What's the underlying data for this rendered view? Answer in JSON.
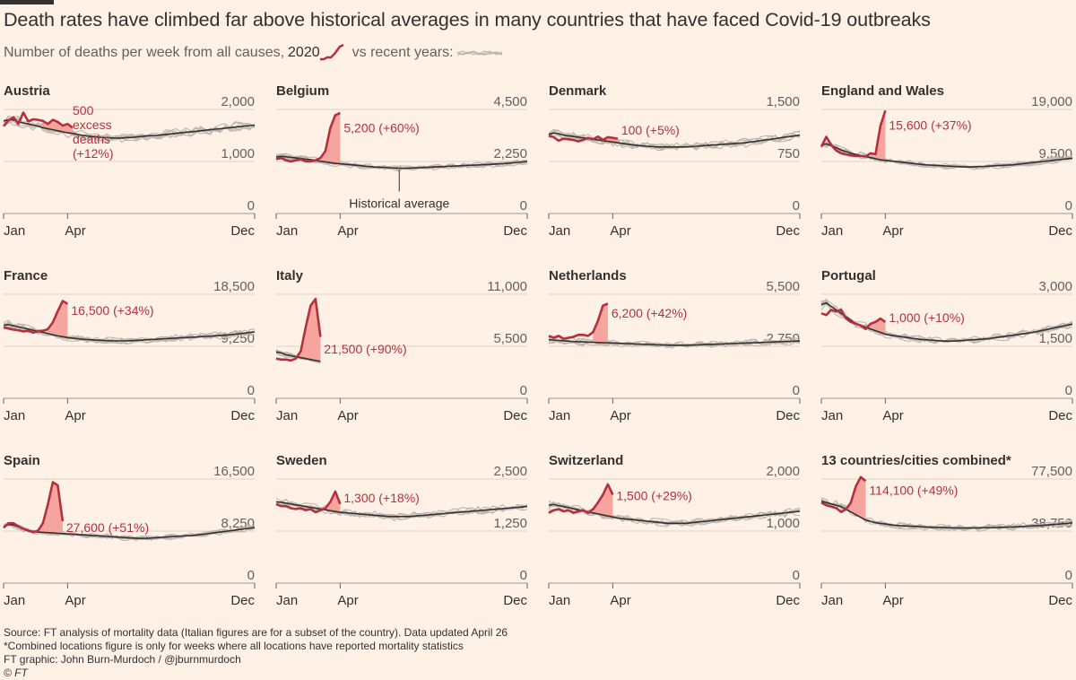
{
  "header": {
    "title": "Death rates have climbed far above historical averages in many countries that have faced Covid-19 outbreaks",
    "subtitle_prefix": "Number of deaths per week from all causes,",
    "subtitle_year": "2020",
    "subtitle_suffix": "vs recent years:"
  },
  "footer": {
    "source": "Source: FT analysis of mortality data (Italian figures are for a subset of the country). Data updated April 26",
    "note": "*Combined locations figure is only for weeks where all locations have reported mortality statistics",
    "credit": "FT graphic: John Burn-Murdoch / @jburnmurdoch",
    "copyright": "© FT"
  },
  "colors": {
    "background": "#fff1e5",
    "line_2020": "#b5303e",
    "excess_fill": "#f6a09a",
    "historical_lines": "#bdb6ae",
    "historical_average": "#33302e",
    "gridline": "#dcd2c8"
  },
  "chart_data": [
    {
      "type": "line",
      "title": "Austria",
      "x_ticks": [
        "Jan",
        "Apr",
        "Dec"
      ],
      "y_ticks": [
        "2,000",
        "1,000",
        "0"
      ],
      "ylim": [
        0,
        2000
      ],
      "series_2020": [
        1680,
        1790,
        1850,
        1720,
        1940,
        1770,
        1810,
        1800,
        1780,
        1720,
        1800,
        1760,
        1690,
        1720,
        1650
      ],
      "historical_average": [
        1780,
        1800,
        1800,
        1760,
        1740,
        1720,
        1700,
        1680,
        1650,
        1630,
        1610,
        1590,
        1570,
        1550,
        1540,
        1520,
        1500,
        1490,
        1480,
        1470,
        1460,
        1460,
        1450,
        1450,
        1450,
        1460,
        1460,
        1470,
        1480,
        1490,
        1500,
        1500,
        1510,
        1520,
        1530,
        1540,
        1550,
        1560,
        1570,
        1580,
        1590,
        1600,
        1610,
        1620,
        1630,
        1640,
        1650,
        1660,
        1670,
        1680,
        1690,
        1700
      ],
      "excess_start_week": 8,
      "annotation": "500 excess deaths (+12%)"
    },
    {
      "type": "line",
      "title": "Belgium",
      "x_ticks": [
        "Jan",
        "Apr",
        "Dec"
      ],
      "y_ticks": [
        "4,500",
        "2,250",
        "0"
      ],
      "ylim": [
        0,
        4500
      ],
      "series_2020": [
        2350,
        2400,
        2300,
        2250,
        2300,
        2350,
        2250,
        2250,
        2300,
        2400,
        2700,
        3700,
        4250,
        4350
      ],
      "historical_average": [
        2450,
        2470,
        2450,
        2430,
        2400,
        2380,
        2350,
        2330,
        2300,
        2260,
        2230,
        2200,
        2170,
        2150,
        2130,
        2110,
        2090,
        2070,
        2050,
        2030,
        2010,
        2000,
        1990,
        1980,
        1970,
        1960,
        1960,
        1960,
        1970,
        1980,
        1990,
        2000,
        2010,
        2020,
        2030,
        2040,
        2050,
        2060,
        2070,
        2080,
        2090,
        2100,
        2110,
        2120,
        2130,
        2140,
        2150,
        2170,
        2190,
        2210,
        2230,
        2250
      ],
      "excess_start_week": 9,
      "annotation": "5,200 (+60%)",
      "historical_label": "Historical average"
    },
    {
      "type": "line",
      "title": "Denmark",
      "x_ticks": [
        "Jan",
        "Apr",
        "Dec"
      ],
      "y_ticks": [
        "1,500",
        "750",
        "0"
      ],
      "ylim": [
        0,
        1500
      ],
      "series_2020": [
        1120,
        1100,
        1050,
        1080,
        1070,
        1060,
        1040,
        1060,
        1090,
        1070,
        1110,
        1060,
        1100,
        1090,
        1080
      ],
      "historical_average": [
        1140,
        1160,
        1150,
        1130,
        1120,
        1110,
        1100,
        1090,
        1080,
        1070,
        1060,
        1050,
        1040,
        1030,
        1020,
        1010,
        1000,
        990,
        980,
        975,
        970,
        965,
        960,
        960,
        960,
        960,
        960,
        960,
        960,
        965,
        970,
        975,
        980,
        985,
        990,
        995,
        1000,
        1005,
        1010,
        1015,
        1020,
        1030,
        1040,
        1050,
        1060,
        1070,
        1080,
        1090,
        1100,
        1110,
        1120,
        1130
      ],
      "excess_start_week": 11,
      "annotation": "100 (+5%)"
    },
    {
      "type": "line",
      "title": "England and Wales",
      "x_ticks": [
        "Jan",
        "Apr",
        "Dec"
      ],
      "y_ticks": [
        "19,000",
        "9,500",
        "0"
      ],
      "ylim": [
        0,
        19000
      ],
      "series_2020": [
        12200,
        14000,
        12500,
        11500,
        11000,
        10800,
        10600,
        10500,
        10500,
        10400,
        11000,
        10800,
        16000,
        18800
      ],
      "historical_average": [
        12500,
        12700,
        12400,
        12000,
        11600,
        11300,
        11000,
        10800,
        10600,
        10400,
        10200,
        10000,
        9800,
        9700,
        9600,
        9500,
        9400,
        9300,
        9200,
        9100,
        9000,
        8900,
        8850,
        8800,
        8750,
        8700,
        8650,
        8600,
        8550,
        8500,
        8500,
        8500,
        8550,
        8600,
        8650,
        8700,
        8750,
        8800,
        8850,
        8900,
        9000,
        9100,
        9200,
        9300,
        9400,
        9500,
        9600,
        9700,
        9800,
        9900,
        10000,
        10100
      ],
      "excess_start_week": 11,
      "annotation": "15,600 (+37%)"
    },
    {
      "type": "line",
      "title": "France",
      "x_ticks": [
        "Jan",
        "Apr",
        "Dec"
      ],
      "y_ticks": [
        "18,500",
        "9,250",
        "0"
      ],
      "ylim": [
        0,
        18500
      ],
      "series_2020": [
        12600,
        12400,
        12200,
        12100,
        11900,
        12000,
        11700,
        11900,
        12000,
        12300,
        13500,
        15500,
        17300,
        16800
      ],
      "historical_average": [
        13000,
        13100,
        12900,
        12700,
        12500,
        12300,
        12100,
        11900,
        11700,
        11500,
        11300,
        11100,
        10950,
        10800,
        10700,
        10600,
        10500,
        10450,
        10400,
        10350,
        10300,
        10250,
        10200,
        10200,
        10200,
        10200,
        10250,
        10300,
        10350,
        10400,
        10450,
        10500,
        10550,
        10600,
        10650,
        10700,
        10750,
        10800,
        10850,
        10900,
        10950,
        11000,
        11050,
        11100,
        11150,
        11200,
        11300,
        11400,
        11500,
        11600,
        11700,
        11800
      ],
      "excess_start_week": 9,
      "annotation": "16,500 (+34%)"
    },
    {
      "type": "line",
      "title": "Italy",
      "x_ticks": [
        "Jan",
        "Apr",
        "Dec"
      ],
      "y_ticks": [
        "11,000",
        "5,500",
        "0"
      ],
      "ylim": [
        0,
        11000
      ],
      "series_2020": [
        4200,
        4100,
        4100,
        4000,
        4200,
        5000,
        7500,
        9800,
        10500,
        6500
      ],
      "historical_average": [
        4900,
        4800,
        4600,
        4500,
        4400,
        4300,
        4200,
        4100,
        4000,
        3900
      ],
      "excess_start_week": 4,
      "annotation": "21,500 (+90%)"
    },
    {
      "type": "line",
      "title": "Netherlands",
      "x_ticks": [
        "Jan",
        "Apr",
        "Dec"
      ],
      "y_ticks": [
        "5,500",
        "2,750",
        "0"
      ],
      "ylim": [
        0,
        5500
      ],
      "series_2020": [
        3300,
        3200,
        3300,
        3150,
        3200,
        3250,
        3350,
        3350,
        3300,
        3500,
        4100,
        4900,
        5000
      ],
      "historical_average": [
        3100,
        3080,
        3060,
        3040,
        3020,
        3000,
        2990,
        2980,
        2970,
        2960,
        2950,
        2940,
        2930,
        2920,
        2910,
        2900,
        2890,
        2880,
        2870,
        2860,
        2850,
        2840,
        2830,
        2820,
        2810,
        2800,
        2800,
        2800,
        2800,
        2810,
        2820,
        2830,
        2840,
        2850,
        2860,
        2870,
        2880,
        2890,
        2900,
        2910,
        2920,
        2930,
        2940,
        2950,
        2960,
        2970,
        2980,
        2990,
        3000,
        3010,
        3020,
        3030
      ],
      "excess_start_week": 9,
      "annotation": "6,200 (+42%)"
    },
    {
      "type": "line",
      "title": "Portugal",
      "x_ticks": [
        "Jan",
        "Apr",
        "Dec"
      ],
      "y_ticks": [
        "3,000",
        "1,500",
        "0"
      ],
      "ylim": [
        0,
        3000
      ],
      "series_2020": [
        2450,
        2400,
        2550,
        2500,
        2550,
        2300,
        2200,
        2150,
        2100,
        2000,
        2150,
        2200,
        2300,
        2200
      ],
      "historical_average": [
        2700,
        2750,
        2650,
        2550,
        2450,
        2350,
        2250,
        2150,
        2100,
        2050,
        2000,
        1950,
        1900,
        1850,
        1820,
        1800,
        1780,
        1760,
        1740,
        1720,
        1700,
        1690,
        1680,
        1670,
        1660,
        1650,
        1650,
        1650,
        1660,
        1670,
        1680,
        1690,
        1700,
        1710,
        1720,
        1740,
        1760,
        1780,
        1800,
        1820,
        1840,
        1860,
        1880,
        1900,
        1930,
        1960,
        1990,
        2020,
        2050,
        2080,
        2110,
        2140
      ],
      "excess_start_week": 10,
      "annotation": "1,000 (+10%)"
    },
    {
      "type": "line",
      "title": "Spain",
      "x_ticks": [
        "Jan",
        "Apr",
        "Dec"
      ],
      "y_ticks": [
        "16,500",
        "8,250",
        "0"
      ],
      "ylim": [
        0,
        16500
      ],
      "series_2020": [
        8800,
        9500,
        9500,
        9000,
        8600,
        8300,
        8100,
        8300,
        9500,
        12500,
        16000,
        15500,
        9800
      ],
      "historical_average": [
        8900,
        9300,
        9200,
        8900,
        8600,
        8400,
        8200,
        8100,
        8050,
        8000,
        7950,
        7900,
        7850,
        7800,
        7750,
        7700,
        7650,
        7600,
        7550,
        7500,
        7450,
        7400,
        7350,
        7300,
        7250,
        7200,
        7150,
        7100,
        7100,
        7100,
        7150,
        7200,
        7250,
        7300,
        7350,
        7400,
        7450,
        7500,
        7550,
        7600,
        7700,
        7800,
        7900,
        8000,
        8100,
        8200,
        8300,
        8400,
        8500,
        8600,
        8700,
        8800
      ],
      "excess_start_week": 7,
      "annotation": "27,600 (+51%)"
    },
    {
      "type": "line",
      "title": "Sweden",
      "x_ticks": [
        "Jan",
        "Apr",
        "Dec"
      ],
      "y_ticks": [
        "2,500",
        "1,250",
        "0"
      ],
      "ylim": [
        0,
        2500
      ],
      "series_2020": [
        1900,
        1850,
        1850,
        1800,
        1780,
        1800,
        1750,
        1780,
        1700,
        1750,
        1800,
        1950,
        2200,
        1900
      ],
      "historical_average": [
        1950,
        1940,
        1920,
        1900,
        1880,
        1860,
        1840,
        1820,
        1800,
        1780,
        1760,
        1740,
        1720,
        1700,
        1690,
        1680,
        1670,
        1660,
        1650,
        1640,
        1630,
        1620,
        1610,
        1600,
        1600,
        1600,
        1600,
        1600,
        1610,
        1620,
        1630,
        1640,
        1650,
        1660,
        1670,
        1680,
        1690,
        1700,
        1710,
        1720,
        1730,
        1740,
        1750,
        1760,
        1770,
        1780,
        1790,
        1800,
        1810,
        1820,
        1830,
        1840
      ],
      "excess_start_week": 9,
      "annotation": "1,300 (+18%)"
    },
    {
      "type": "line",
      "title": "Switzerland",
      "x_ticks": [
        "Jan",
        "Apr",
        "Dec"
      ],
      "y_ticks": [
        "2,000",
        "1,000",
        "0"
      ],
      "ylim": [
        0,
        2000
      ],
      "series_2020": [
        1350,
        1400,
        1420,
        1380,
        1400,
        1350,
        1380,
        1400,
        1350,
        1420,
        1550,
        1700,
        1900,
        1700
      ],
      "historical_average": [
        1500,
        1510,
        1490,
        1470,
        1450,
        1430,
        1410,
        1390,
        1370,
        1350,
        1330,
        1310,
        1290,
        1270,
        1250,
        1240,
        1230,
        1220,
        1210,
        1200,
        1190,
        1180,
        1170,
        1160,
        1150,
        1150,
        1150,
        1150,
        1150,
        1160,
        1170,
        1180,
        1190,
        1200,
        1210,
        1220,
        1230,
        1240,
        1250,
        1260,
        1270,
        1280,
        1290,
        1300,
        1310,
        1320,
        1330,
        1340,
        1350,
        1360,
        1370,
        1380
      ],
      "excess_start_week": 9,
      "annotation": "1,500 (+29%)"
    },
    {
      "type": "line",
      "title": "13 countries/cities combined*",
      "x_ticks": [
        "Jan",
        "Apr",
        "Dec"
      ],
      "y_ticks": [
        "77,500",
        "38,750",
        "0"
      ],
      "ylim": [
        0,
        77500
      ],
      "series_2020": [
        60000,
        58000,
        57000,
        56000,
        53000,
        55000,
        60000,
        72000,
        79000,
        76000
      ],
      "historical_average": [
        61000,
        60000,
        59000,
        58000,
        57000,
        55000,
        53000,
        51000,
        49000,
        47000,
        46000,
        45000,
        44500,
        44000,
        43500,
        43000,
        42800,
        42600,
        42400,
        42200,
        42000,
        41800,
        41600,
        41500,
        41400,
        41300,
        41200,
        41100,
        41000,
        41000,
        41000,
        41000,
        41100,
        41200,
        41300,
        41400,
        41500,
        41600,
        41700,
        41800,
        42000,
        42200,
        42400,
        42600,
        42800,
        43000,
        43300,
        43600,
        43900,
        44200,
        44500,
        45000
      ],
      "excess_start_week": 5,
      "annotation": "114,100 (+49%)"
    }
  ]
}
